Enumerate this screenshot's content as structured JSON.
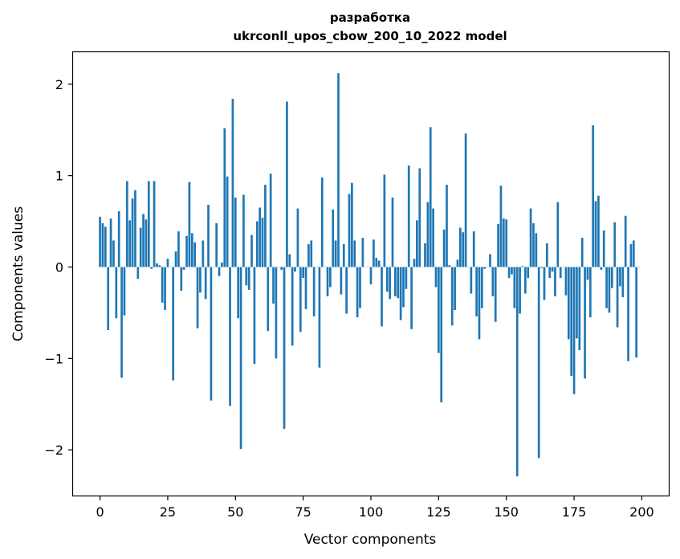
{
  "chart_data": {
    "type": "bar",
    "title_line1": "разработка",
    "title_line2": "ukrconll_upos_cbow_200_10_2022 model",
    "xlabel": "Vector components",
    "ylabel": "Components values",
    "xlim": [
      -9.95,
      209.95
    ],
    "ylim": [
      -2.5,
      2.35
    ],
    "xticks": [
      0,
      25,
      50,
      75,
      100,
      125,
      150,
      175,
      200
    ],
    "xtick_labels": [
      "0",
      "25",
      "50",
      "75",
      "100",
      "125",
      "150",
      "175",
      "200"
    ],
    "yticks": [
      -2,
      -1,
      0,
      1,
      2
    ],
    "ytick_labels": [
      "−2",
      "−1",
      "0",
      "1",
      "2"
    ],
    "grid": false,
    "color": "#1f77b4",
    "values": [
      0.55,
      0.48,
      0.44,
      -0.69,
      0.53,
      0.29,
      -0.56,
      0.61,
      -1.21,
      -0.53,
      0.94,
      0.51,
      0.75,
      0.84,
      -0.13,
      0.43,
      0.58,
      0.52,
      0.94,
      -0.02,
      0.94,
      0.04,
      0.02,
      -0.39,
      -0.47,
      0.09,
      0.0,
      -1.24,
      0.17,
      0.39,
      -0.26,
      -0.03,
      0.34,
      0.93,
      0.37,
      0.27,
      -0.67,
      -0.28,
      0.29,
      -0.35,
      0.68,
      -1.46,
      0.0,
      0.48,
      -0.1,
      0.05,
      1.52,
      0.99,
      -1.52,
      1.84,
      0.76,
      -0.56,
      -1.99,
      0.79,
      -0.2,
      -0.25,
      0.35,
      -1.06,
      0.5,
      0.65,
      0.54,
      0.9,
      -0.7,
      1.02,
      -0.4,
      -1.0,
      0.0,
      -0.03,
      -1.77,
      1.81,
      0.14,
      -0.86,
      -0.05,
      0.64,
      -0.71,
      -0.12,
      -0.46,
      0.25,
      0.29,
      -0.54,
      0.0,
      -1.1,
      0.98,
      0.0,
      -0.32,
      -0.22,
      0.63,
      0.29,
      2.12,
      -0.3,
      0.25,
      -0.51,
      0.8,
      0.92,
      0.29,
      -0.55,
      -0.45,
      0.32,
      0.0,
      0.0,
      -0.19,
      0.3,
      0.1,
      0.07,
      -0.65,
      1.01,
      -0.27,
      -0.35,
      0.76,
      -0.32,
      -0.34,
      -0.58,
      -0.44,
      -0.24,
      1.11,
      -0.68,
      0.09,
      0.51,
      1.08,
      0.0,
      0.26,
      0.71,
      1.53,
      0.64,
      -0.22,
      -0.94,
      -1.48,
      0.41,
      0.9,
      0.02,
      -0.64,
      -0.47,
      0.08,
      0.43,
      0.38,
      1.46,
      0.0,
      -0.29,
      0.39,
      -0.54,
      -0.79,
      -0.45,
      -0.02,
      0.0,
      0.14,
      -0.32,
      -0.6,
      0.47,
      0.89,
      0.53,
      0.52,
      -0.12,
      -0.08,
      -0.45,
      -2.29,
      -0.51,
      0.01,
      -0.29,
      -0.12,
      0.64,
      0.48,
      0.37,
      -2.09,
      -0.01,
      -0.36,
      0.26,
      -0.12,
      -0.05,
      -0.32,
      0.71,
      -0.12,
      0.0,
      -0.31,
      -0.79,
      -1.19,
      -1.39,
      -0.78,
      -0.91,
      0.32,
      -1.22,
      -0.14,
      -0.55,
      1.55,
      0.72,
      0.78,
      -0.03,
      0.4,
      -0.45,
      -0.5,
      -0.23,
      0.49,
      -0.66,
      -0.21,
      -0.33,
      0.56,
      -1.03,
      0.25,
      0.29,
      -0.99,
      0.0
    ]
  }
}
